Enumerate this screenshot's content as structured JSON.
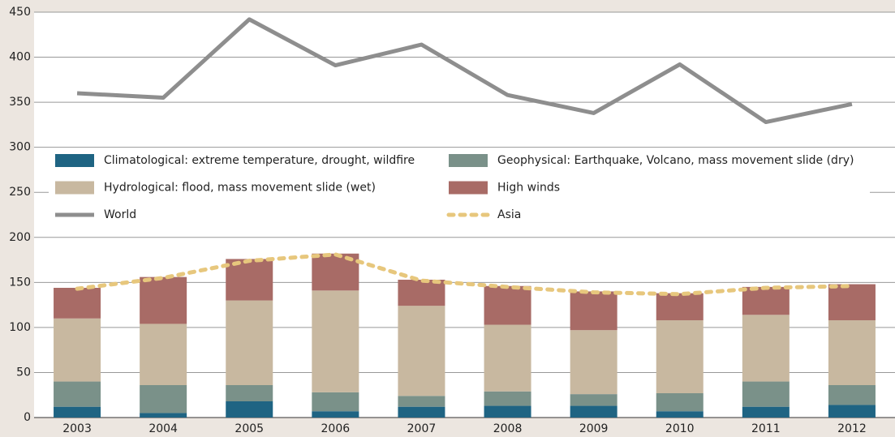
{
  "chart_data": {
    "type": "bar",
    "categories": [
      "2003",
      "2004",
      "2005",
      "2006",
      "2007",
      "2008",
      "2009",
      "2010",
      "2011",
      "2012"
    ],
    "series": [
      {
        "name": "Climatological: extreme temperature, drought, wildfire",
        "type": "bar",
        "color": "#1f6483",
        "values": [
          12,
          5,
          18,
          7,
          12,
          13,
          13,
          7,
          12,
          14
        ]
      },
      {
        "name": "Geophysical: Earthquake, Volcano, mass movement slide (dry)",
        "type": "bar",
        "color": "#7a9189",
        "values": [
          28,
          31,
          18,
          21,
          12,
          16,
          13,
          20,
          28,
          22
        ]
      },
      {
        "name": "Hydrological: flood, mass movement slide (wet)",
        "type": "bar",
        "color": "#c8b8a0",
        "values": [
          70,
          68,
          94,
          113,
          100,
          74,
          71,
          81,
          74,
          72
        ]
      },
      {
        "name": "High winds",
        "type": "bar",
        "color": "#a86b66",
        "values": [
          34,
          52,
          46,
          41,
          29,
          43,
          43,
          30,
          31,
          40
        ]
      },
      {
        "name": "World",
        "type": "line",
        "color": "#8e8e8e",
        "dashed": false,
        "values": [
          360,
          355,
          442,
          391,
          414,
          358,
          338,
          392,
          328,
          348
        ]
      },
      {
        "name": "Asia",
        "type": "line",
        "color": "#e7c77d",
        "dashed": true,
        "values": [
          143,
          155,
          174,
          181,
          152,
          145,
          139,
          137,
          144,
          146
        ]
      }
    ],
    "stacked": true,
    "ylim": [
      0,
      450
    ],
    "yticks": [
      0,
      50,
      100,
      150,
      200,
      250,
      300,
      350,
      400,
      450
    ],
    "grid": true,
    "legend": "center"
  }
}
